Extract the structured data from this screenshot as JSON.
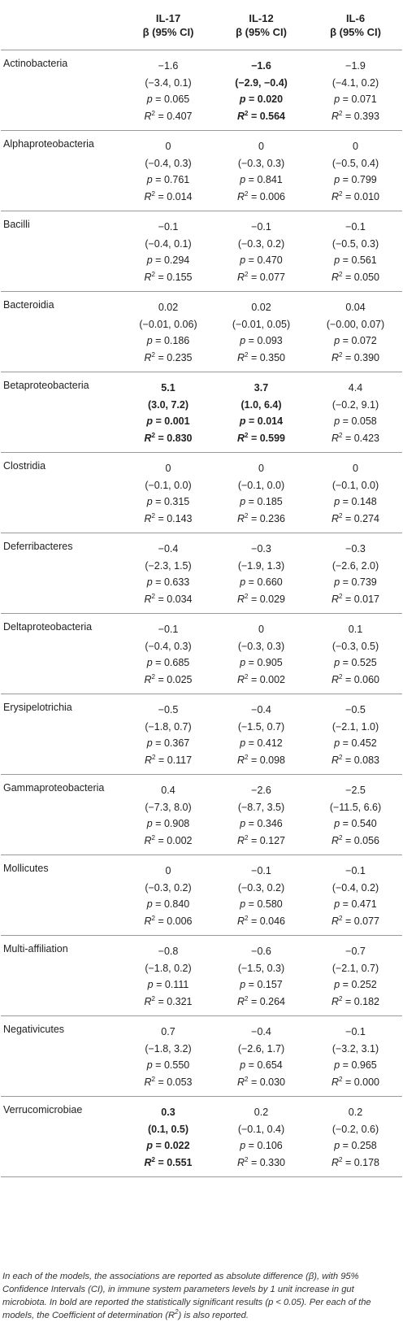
{
  "header": {
    "columns": [
      {
        "name": "IL-17",
        "sub": "β (95% CI)"
      },
      {
        "name": "IL-12",
        "sub": "β (95% CI)"
      },
      {
        "name": "IL-6",
        "sub": "β (95% CI)"
      }
    ]
  },
  "labels": {
    "p": "p",
    "r2": "R",
    "r2_sup": "2",
    "eq": " = "
  },
  "rows": [
    {
      "taxon": "Actinobacteria",
      "cells": [
        {
          "beta": "−1.6",
          "ci": "(−3.4, 0.1)",
          "p": "0.065",
          "r2": "0.407",
          "bold": false
        },
        {
          "beta": "−1.6",
          "ci": "(−2.9, −0.4)",
          "p": "0.020",
          "r2": "0.564",
          "bold": true
        },
        {
          "beta": "−1.9",
          "ci": "(−4.1, 0.2)",
          "p": "0.071",
          "r2": "0.393",
          "bold": false
        }
      ]
    },
    {
      "taxon": "Alphaproteobacteria",
      "cells": [
        {
          "beta": "0",
          "ci": "(−0.4, 0.3)",
          "p": "0.761",
          "r2": "0.014",
          "bold": false
        },
        {
          "beta": "0",
          "ci": "(−0.3, 0.3)",
          "p": "0.841",
          "r2": "0.006",
          "bold": false
        },
        {
          "beta": "0",
          "ci": "(−0.5, 0.4)",
          "p": "0.799",
          "r2": "0.010",
          "bold": false
        }
      ]
    },
    {
      "taxon": "Bacilli",
      "cells": [
        {
          "beta": "−0.1",
          "ci": "(−0.4, 0.1)",
          "p": "0.294",
          "r2": "0.155",
          "bold": false
        },
        {
          "beta": "−0.1",
          "ci": "(−0.3, 0.2)",
          "p": "0.470",
          "r2": "0.077",
          "bold": false
        },
        {
          "beta": "−0.1",
          "ci": "(−0.5, 0.3)",
          "p": "0.561",
          "r2": "0.050",
          "bold": false
        }
      ]
    },
    {
      "taxon": "Bacteroidia",
      "cells": [
        {
          "beta": "0.02",
          "ci": "(−0.01, 0.06)",
          "p": "0.186",
          "r2": "0.235",
          "bold": false
        },
        {
          "beta": "0.02",
          "ci": "(−0.01, 0.05)",
          "p": "0.093",
          "r2": "0.350",
          "bold": false
        },
        {
          "beta": "0.04",
          "ci": "(−0.00, 0.07)",
          "p": "0.072",
          "r2": "0.390",
          "bold": false
        }
      ]
    },
    {
      "taxon": "Betaproteobacteria",
      "cells": [
        {
          "beta": "5.1",
          "ci": "(3.0, 7.2)",
          "p": "0.001",
          "r2": "0.830",
          "bold": true
        },
        {
          "beta": "3.7",
          "ci": "(1.0, 6.4)",
          "p": "0.014",
          "r2": "0.599",
          "bold": true
        },
        {
          "beta": "4.4",
          "ci": "(−0.2, 9.1)",
          "p": "0.058",
          "r2": "0.423",
          "bold": false
        }
      ]
    },
    {
      "taxon": "Clostridia",
      "cells": [
        {
          "beta": "0",
          "ci": "(−0.1, 0.0)",
          "p": "0.315",
          "r2": "0.143",
          "bold": false
        },
        {
          "beta": "0",
          "ci": "(−0.1, 0.0)",
          "p": "0.185",
          "r2": "0.236",
          "bold": false
        },
        {
          "beta": "0",
          "ci": "(−0.1, 0.0)",
          "p": "0.148",
          "r2": "0.274",
          "bold": false
        }
      ]
    },
    {
      "taxon": "Deferribacteres",
      "cells": [
        {
          "beta": "−0.4",
          "ci": "(−2.3, 1.5)",
          "p": "0.633",
          "r2": "0.034",
          "bold": false
        },
        {
          "beta": "−0.3",
          "ci": "(−1.9, 1.3)",
          "p": "0.660",
          "r2": "0.029",
          "bold": false
        },
        {
          "beta": "−0.3",
          "ci": "(−2.6, 2.0)",
          "p": "0.739",
          "r2": "0.017",
          "bold": false
        }
      ]
    },
    {
      "taxon": "Deltaproteobacteria",
      "cells": [
        {
          "beta": "−0.1",
          "ci": "(−0.4, 0.3)",
          "p": "0.685",
          "r2": "0.025",
          "bold": false
        },
        {
          "beta": "0",
          "ci": "(−0.3, 0.3)",
          "p": "0.905",
          "r2": "0.002",
          "bold": false
        },
        {
          "beta": "0.1",
          "ci": "(−0.3, 0.5)",
          "p": "0.525",
          "r2": "0.060",
          "bold": false
        }
      ]
    },
    {
      "taxon": "Erysipelotrichia",
      "cells": [
        {
          "beta": "−0.5",
          "ci": "(−1.8, 0.7)",
          "p": "0.367",
          "r2": "0.117",
          "bold": false
        },
        {
          "beta": "−0.4",
          "ci": "(−1.5, 0.7)",
          "p": "0.412",
          "r2": "0.098",
          "bold": false
        },
        {
          "beta": "−0.5",
          "ci": "(−2.1, 1.0)",
          "p": "0.452",
          "r2": "0.083",
          "bold": false
        }
      ]
    },
    {
      "taxon": "Gammaproteobacteria",
      "cells": [
        {
          "beta": "0.4",
          "ci": "(−7.3, 8.0)",
          "p": "0.908",
          "r2": "0.002",
          "bold": false
        },
        {
          "beta": "−2.6",
          "ci": "(−8.7, 3.5)",
          "p": "0.346",
          "r2": "0.127",
          "bold": false
        },
        {
          "beta": "−2.5",
          "ci": "(−11.5, 6.6)",
          "p": "0.540",
          "r2": "0.056",
          "bold": false
        }
      ]
    },
    {
      "taxon": "Mollicutes",
      "cells": [
        {
          "beta": "0",
          "ci": "(−0.3, 0.2)",
          "p": "0.840",
          "r2": "0.006",
          "bold": false
        },
        {
          "beta": "−0.1",
          "ci": "(−0.3, 0.2)",
          "p": "0.580",
          "r2": "0.046",
          "bold": false
        },
        {
          "beta": "−0.1",
          "ci": "(−0.4, 0.2)",
          "p": "0.471",
          "r2": "0.077",
          "bold": false
        }
      ]
    },
    {
      "taxon": "Multi-affiliation",
      "cells": [
        {
          "beta": "−0.8",
          "ci": "(−1.8, 0.2)",
          "p": "0.111",
          "r2": "0.321",
          "bold": false
        },
        {
          "beta": "−0.6",
          "ci": "(−1.5, 0.3)",
          "p": "0.157",
          "r2": "0.264",
          "bold": false
        },
        {
          "beta": "−0.7",
          "ci": "(−2.1, 0.7)",
          "p": "0.252",
          "r2": "0.182",
          "bold": false
        }
      ]
    },
    {
      "taxon": "Negativicutes",
      "cells": [
        {
          "beta": "0.7",
          "ci": "(−1.8, 3.2)",
          "p": "0.550",
          "r2": "0.053",
          "bold": false
        },
        {
          "beta": "−0.4",
          "ci": "(−2.6, 1.7)",
          "p": "0.654",
          "r2": "0.030",
          "bold": false
        },
        {
          "beta": "−0.1",
          "ci": "(−3.2, 3.1)",
          "p": "0.965",
          "r2": "0.000",
          "bold": false
        }
      ]
    },
    {
      "taxon": "Verrucomicrobiae",
      "cells": [
        {
          "beta": "0.3",
          "ci": "(0.1, 0.5)",
          "p": "0.022",
          "r2": "0.551",
          "bold": true
        },
        {
          "beta": "0.2",
          "ci": "(−0.1, 0.4)",
          "p": "0.106",
          "r2": "0.330",
          "bold": false
        },
        {
          "beta": "0.2",
          "ci": "(−0.2, 0.6)",
          "p": "0.258",
          "r2": "0.178",
          "bold": false
        }
      ]
    }
  ],
  "footnote": {
    "part1": "In each of the models, the associations are reported as absolute difference (β), with 95% Confidence Intervals (CI), in immune system parameters levels by 1 unit increase in gut microbiota. In bold are reported the statistically significant results (p < 0.05). Per each of the models, the Coefficient of determination (",
    "r2": "R",
    "r2_sup": "2",
    "part2": ") is also reported."
  }
}
